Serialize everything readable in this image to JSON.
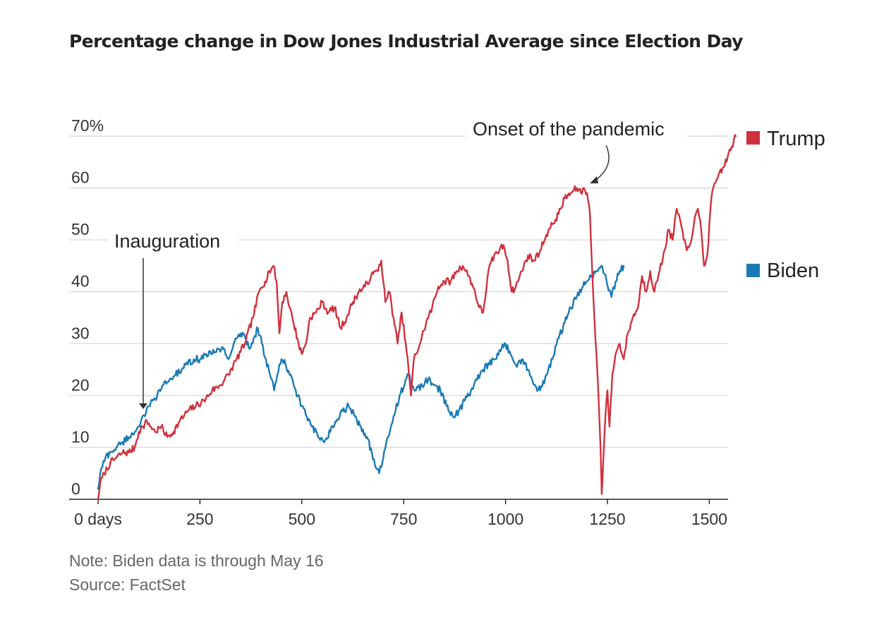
{
  "chart_data": {
    "type": "line",
    "title": "Percentage change in Dow Jones Industrial Average since Election Day",
    "xlabel": "",
    "ylabel": "",
    "xlim": [
      0,
      1540
    ],
    "ylim": [
      0,
      70
    ],
    "x_ticks": [
      0,
      250,
      500,
      750,
      1000,
      1250,
      1500
    ],
    "x_tick_labels": [
      "0 days",
      "250",
      "500",
      "750",
      "1000",
      "1250",
      "1500"
    ],
    "y_ticks": [
      0,
      10,
      20,
      30,
      40,
      50,
      60,
      70
    ],
    "y_tick_labels": [
      "0",
      "10",
      "20",
      "30",
      "40",
      "50",
      "60",
      "70%"
    ],
    "grid": true,
    "legend": "right",
    "series": [
      {
        "name": "Trump",
        "color": "#d0313d",
        "points": [
          [
            0,
            0
          ],
          [
            5,
            3
          ],
          [
            15,
            5
          ],
          [
            30,
            7
          ],
          [
            45,
            8
          ],
          [
            60,
            9
          ],
          [
            75,
            9
          ],
          [
            90,
            10
          ],
          [
            100,
            13
          ],
          [
            110,
            14
          ],
          [
            120,
            15
          ],
          [
            130,
            14
          ],
          [
            140,
            13
          ],
          [
            155,
            14
          ],
          [
            170,
            12
          ],
          [
            185,
            13
          ],
          [
            200,
            15
          ],
          [
            220,
            17
          ],
          [
            240,
            18
          ],
          [
            260,
            19
          ],
          [
            280,
            21
          ],
          [
            300,
            22
          ],
          [
            320,
            24
          ],
          [
            340,
            27
          ],
          [
            360,
            30
          ],
          [
            380,
            35
          ],
          [
            395,
            40
          ],
          [
            410,
            42
          ],
          [
            420,
            44
          ],
          [
            430,
            45
          ],
          [
            438,
            42
          ],
          [
            445,
            32
          ],
          [
            452,
            38
          ],
          [
            462,
            40
          ],
          [
            470,
            37
          ],
          [
            480,
            34
          ],
          [
            492,
            30
          ],
          [
            500,
            28
          ],
          [
            510,
            30
          ],
          [
            520,
            35
          ],
          [
            535,
            36
          ],
          [
            550,
            38
          ],
          [
            565,
            36
          ],
          [
            580,
            37
          ],
          [
            595,
            33
          ],
          [
            610,
            35
          ],
          [
            625,
            38
          ],
          [
            640,
            40
          ],
          [
            655,
            41
          ],
          [
            670,
            43
          ],
          [
            685,
            44
          ],
          [
            695,
            46
          ],
          [
            700,
            42
          ],
          [
            705,
            38
          ],
          [
            715,
            40
          ],
          [
            725,
            35
          ],
          [
            735,
            30
          ],
          [
            745,
            36
          ],
          [
            755,
            30
          ],
          [
            762,
            25
          ],
          [
            768,
            20
          ],
          [
            775,
            27
          ],
          [
            790,
            30
          ],
          [
            805,
            34
          ],
          [
            820,
            37
          ],
          [
            835,
            41
          ],
          [
            850,
            42
          ],
          [
            865,
            42
          ],
          [
            880,
            44
          ],
          [
            895,
            45
          ],
          [
            910,
            43
          ],
          [
            925,
            40
          ],
          [
            935,
            37
          ],
          [
            945,
            36
          ],
          [
            958,
            44
          ],
          [
            972,
            47
          ],
          [
            985,
            48
          ],
          [
            995,
            49
          ],
          [
            1005,
            46
          ],
          [
            1015,
            40
          ],
          [
            1025,
            41
          ],
          [
            1040,
            44
          ],
          [
            1055,
            47
          ],
          [
            1070,
            46
          ],
          [
            1085,
            48
          ],
          [
            1100,
            51
          ],
          [
            1115,
            53
          ],
          [
            1130,
            55
          ],
          [
            1145,
            58
          ],
          [
            1160,
            59
          ],
          [
            1175,
            60
          ],
          [
            1185,
            59
          ],
          [
            1192,
            60
          ],
          [
            1200,
            59
          ],
          [
            1207,
            55
          ],
          [
            1212,
            45
          ],
          [
            1218,
            35
          ],
          [
            1223,
            28
          ],
          [
            1228,
            20
          ],
          [
            1233,
            10
          ],
          [
            1236,
            1
          ],
          [
            1240,
            8
          ],
          [
            1245,
            16
          ],
          [
            1250,
            21
          ],
          [
            1255,
            14
          ],
          [
            1262,
            24
          ],
          [
            1270,
            28
          ],
          [
            1280,
            30
          ],
          [
            1290,
            27
          ],
          [
            1300,
            32
          ],
          [
            1312,
            35
          ],
          [
            1325,
            37
          ],
          [
            1335,
            43
          ],
          [
            1345,
            40
          ],
          [
            1355,
            44
          ],
          [
            1365,
            40
          ],
          [
            1378,
            44
          ],
          [
            1390,
            48
          ],
          [
            1400,
            52
          ],
          [
            1410,
            50
          ],
          [
            1420,
            56
          ],
          [
            1428,
            54
          ],
          [
            1437,
            50
          ],
          [
            1445,
            48
          ],
          [
            1452,
            49
          ],
          [
            1462,
            53
          ],
          [
            1472,
            56
          ],
          [
            1480,
            52
          ],
          [
            1487,
            45
          ],
          [
            1495,
            47
          ],
          [
            1505,
            58
          ],
          [
            1515,
            61
          ],
          [
            1525,
            63
          ],
          [
            1535,
            64
          ],
          [
            1545,
            66
          ],
          [
            1555,
            68
          ],
          [
            1565,
            70
          ]
        ]
      },
      {
        "name": "Biden",
        "color": "#1a7ab5",
        "points": [
          [
            0,
            2
          ],
          [
            8,
            6
          ],
          [
            18,
            8
          ],
          [
            30,
            9
          ],
          [
            45,
            10
          ],
          [
            60,
            11
          ],
          [
            75,
            12
          ],
          [
            90,
            13
          ],
          [
            105,
            15
          ],
          [
            115,
            16
          ],
          [
            125,
            18
          ],
          [
            135,
            19
          ],
          [
            145,
            20
          ],
          [
            160,
            22
          ],
          [
            175,
            23
          ],
          [
            190,
            24
          ],
          [
            205,
            25
          ],
          [
            220,
            26
          ],
          [
            235,
            27
          ],
          [
            250,
            27
          ],
          [
            265,
            28
          ],
          [
            280,
            28
          ],
          [
            295,
            29
          ],
          [
            310,
            29
          ],
          [
            320,
            27
          ],
          [
            330,
            29
          ],
          [
            340,
            31
          ],
          [
            350,
            32
          ],
          [
            362,
            31
          ],
          [
            372,
            29
          ],
          [
            382,
            31
          ],
          [
            392,
            33
          ],
          [
            402,
            30
          ],
          [
            412,
            27
          ],
          [
            422,
            24
          ],
          [
            432,
            21
          ],
          [
            440,
            24
          ],
          [
            450,
            27
          ],
          [
            460,
            26
          ],
          [
            470,
            24
          ],
          [
            480,
            22
          ],
          [
            490,
            20
          ],
          [
            500,
            18
          ],
          [
            512,
            16
          ],
          [
            525,
            14
          ],
          [
            540,
            12
          ],
          [
            555,
            11
          ],
          [
            570,
            13
          ],
          [
            585,
            15
          ],
          [
            600,
            17
          ],
          [
            615,
            18
          ],
          [
            630,
            16
          ],
          [
            645,
            14
          ],
          [
            660,
            12
          ],
          [
            672,
            9
          ],
          [
            682,
            6
          ],
          [
            690,
            5
          ],
          [
            700,
            8
          ],
          [
            712,
            12
          ],
          [
            725,
            16
          ],
          [
            740,
            20
          ],
          [
            752,
            22
          ],
          [
            762,
            24
          ],
          [
            770,
            22
          ],
          [
            780,
            21
          ],
          [
            795,
            22
          ],
          [
            810,
            23
          ],
          [
            825,
            22
          ],
          [
            840,
            21
          ],
          [
            855,
            18
          ],
          [
            870,
            16
          ],
          [
            885,
            17
          ],
          [
            900,
            19
          ],
          [
            915,
            21
          ],
          [
            930,
            23
          ],
          [
            945,
            25
          ],
          [
            960,
            26
          ],
          [
            975,
            27
          ],
          [
            990,
            29
          ],
          [
            1000,
            30
          ],
          [
            1012,
            28
          ],
          [
            1025,
            26
          ],
          [
            1040,
            27
          ],
          [
            1055,
            25
          ],
          [
            1070,
            22
          ],
          [
            1085,
            21
          ],
          [
            1100,
            24
          ],
          [
            1115,
            27
          ],
          [
            1130,
            31
          ],
          [
            1145,
            34
          ],
          [
            1160,
            37
          ],
          [
            1175,
            39
          ],
          [
            1190,
            41
          ],
          [
            1200,
            42
          ],
          [
            1210,
            43
          ],
          [
            1222,
            44
          ],
          [
            1235,
            45
          ],
          [
            1248,
            42
          ],
          [
            1260,
            39
          ],
          [
            1270,
            42
          ],
          [
            1280,
            44
          ],
          [
            1290,
            45
          ]
        ]
      }
    ],
    "annotations": [
      {
        "text": "Inauguration",
        "x": 110,
        "y": 17
      },
      {
        "text": "Onset of the pandemic",
        "x": 1192,
        "y": 61
      }
    ]
  },
  "note": "Note: Biden data is through May 16",
  "source": "Source: FactSet"
}
